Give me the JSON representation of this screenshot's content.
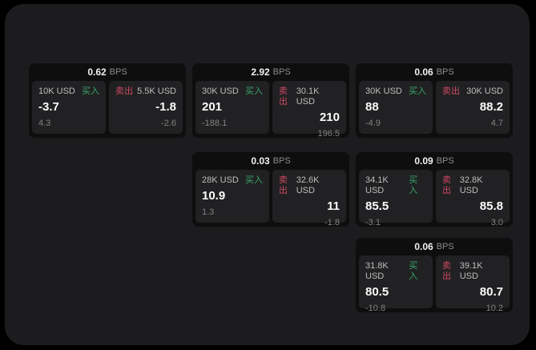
{
  "labels": {
    "buy": "买入",
    "sell": "卖出",
    "bps_suffix": "BPS"
  },
  "colors": {
    "outer_background": "#000000",
    "window_background": "#1c1c1e",
    "card_background": "#0e0e0f",
    "panel_background": "#212123",
    "buy_green": "#3aa66b",
    "sell_red": "#ce4a63",
    "price_white": "#fafafa",
    "muted_gray": "#828282"
  },
  "cards": [
    {
      "bps": "0.62",
      "buy": {
        "amount": "10K USD",
        "price": "-3.7",
        "change": "4.3"
      },
      "sell": {
        "amount": "5.5K USD",
        "price": "-1.8",
        "change": "-2.6"
      }
    },
    {
      "bps": "2.92",
      "buy": {
        "amount": "30K USD",
        "price": "201",
        "change": "-188.1"
      },
      "sell": {
        "amount": "30.1K USD",
        "price": "210",
        "change": "196.5"
      }
    },
    {
      "bps": "0.06",
      "buy": {
        "amount": "30K USD",
        "price": "88",
        "change": "-4.9"
      },
      "sell": {
        "amount": "30K USD",
        "price": "88.2",
        "change": "4.7"
      }
    },
    {
      "bps": "0.03",
      "buy": {
        "amount": "28K USD",
        "price": "10.9",
        "change": "1.3"
      },
      "sell": {
        "amount": "32.6K USD",
        "price": "11",
        "change": "-1.8"
      }
    },
    {
      "bps": "0.09",
      "buy": {
        "amount": "34.1K USD",
        "price": "85.5",
        "change": "-3.1"
      },
      "sell": {
        "amount": "32.8K USD",
        "price": "85.8",
        "change": "3.0"
      }
    },
    {
      "bps": "0.06",
      "buy": {
        "amount": "31.8K USD",
        "price": "80.5",
        "change": "-10.8"
      },
      "sell": {
        "amount": "39.1K USD",
        "price": "80.7",
        "change": "10.2"
      }
    }
  ]
}
